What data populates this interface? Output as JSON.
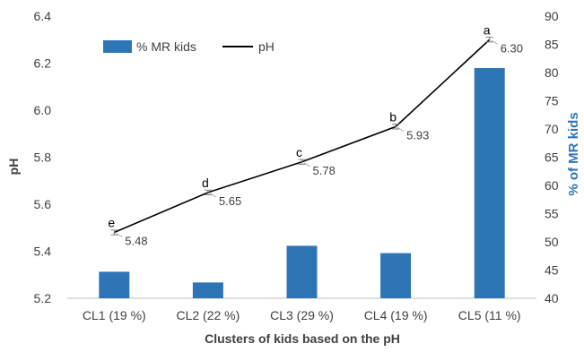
{
  "chart_data": {
    "type": "bar",
    "title": "",
    "xlabel": "Clusters of kids based on the pH",
    "ylabel": "pH",
    "y2label": "% of MR kids",
    "categories": [
      "CL1 (19 %)",
      "CL2 (22 %)",
      "CL3 (29 %)",
      "CL4 (19 %)",
      "CL5 (11 %)"
    ],
    "ylim": [
      5.2,
      6.4
    ],
    "y_ticks": [
      "5.2",
      "5.4",
      "5.6",
      "5.8",
      "6.0",
      "6.2",
      "6.4"
    ],
    "y2lim": [
      40,
      90
    ],
    "y2_ticks": [
      "40",
      "45",
      "50",
      "55",
      "60",
      "65",
      "70",
      "75",
      "80",
      "85",
      "90"
    ],
    "grid": false,
    "legend_position": "top-left",
    "series": [
      {
        "name": "% MR kids",
        "type": "bar",
        "axis": "right",
        "color": "#2e75b6",
        "values": [
          44.7,
          42.8,
          49.3,
          48.0,
          80.8
        ]
      },
      {
        "name": "pH",
        "type": "line",
        "axis": "left",
        "color": "#000000",
        "values": [
          5.48,
          5.65,
          5.78,
          5.93,
          6.3
        ],
        "data_labels": [
          "5.48",
          "5.65",
          "5.78",
          "5.93",
          "6.30"
        ],
        "significance_letters": [
          "e",
          "d",
          "c",
          "b",
          "a"
        ],
        "error_bar": 0.01
      }
    ]
  }
}
